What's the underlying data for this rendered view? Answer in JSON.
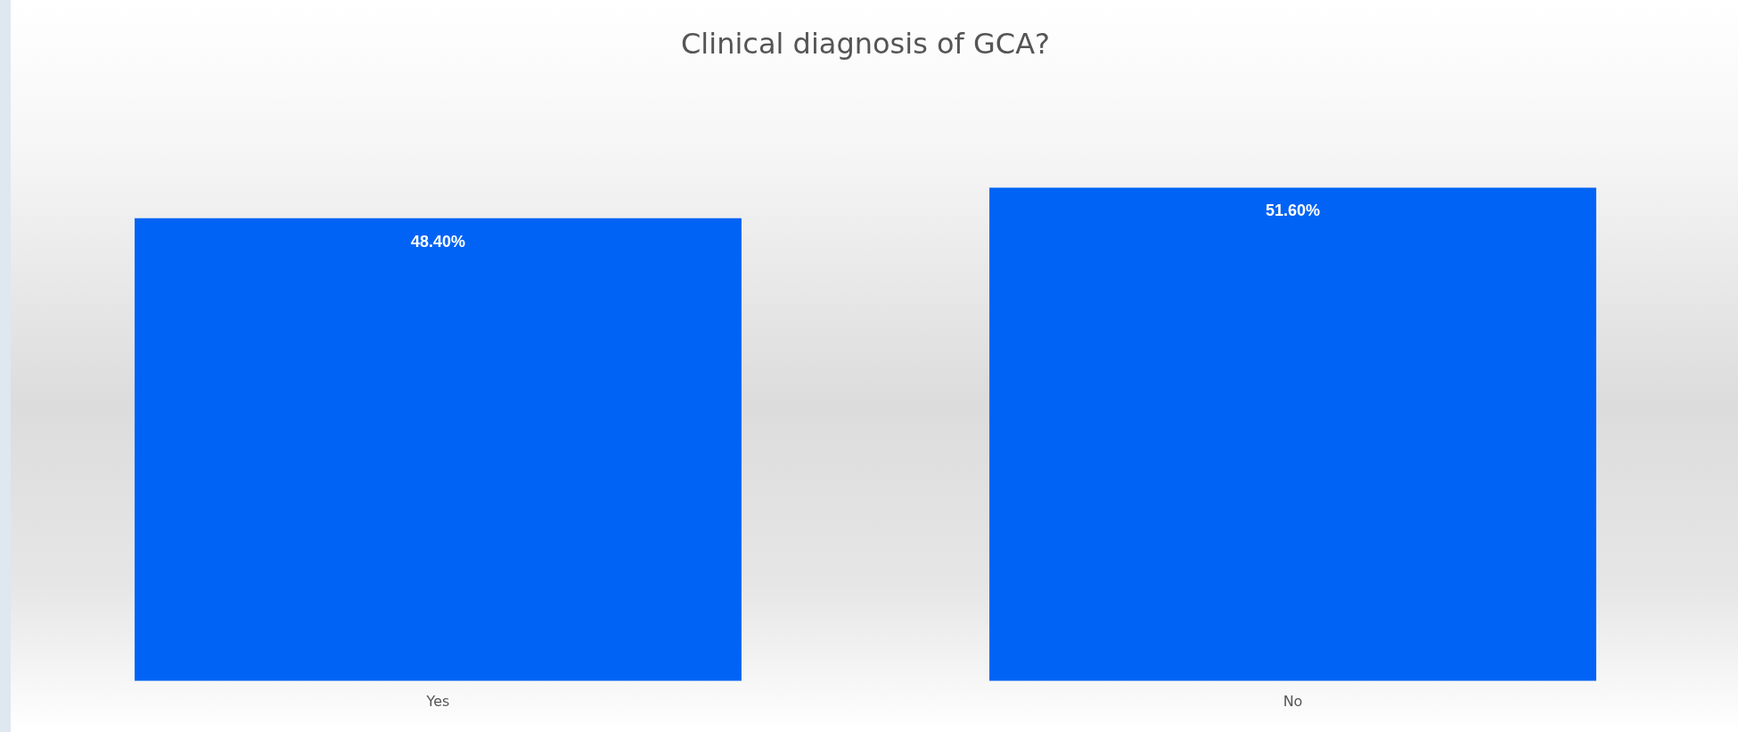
{
  "chart_data": {
    "type": "bar",
    "title": "Clinical diagnosis of GCA?",
    "categories": [
      "Yes",
      "No"
    ],
    "values": [
      48.4,
      51.6
    ],
    "value_labels": [
      "48.40%",
      "51.60%"
    ],
    "color": "#0063f5",
    "tick_labels": "x",
    "grid": false,
    "legend": false
  }
}
